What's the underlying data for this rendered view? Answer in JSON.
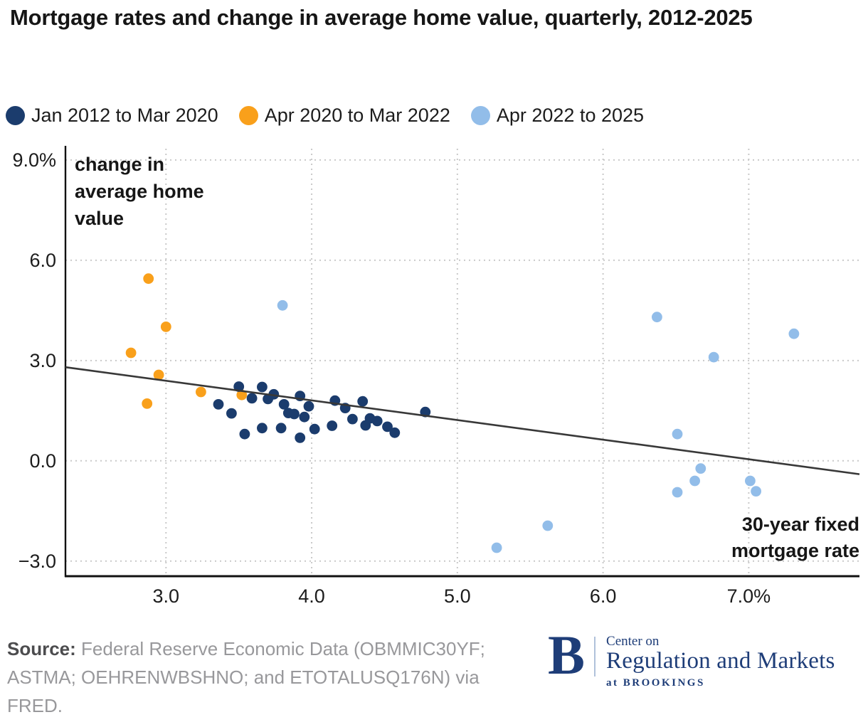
{
  "title": "Mortgage rates and change in average home value, quarterly, 2012-2025",
  "chart_data": {
    "type": "scatter",
    "title": "Mortgage rates and change in average home value, quarterly, 2012-2025",
    "xlabel": "30-year fixed mortgage rate",
    "ylabel": "change in average home value",
    "xlim": [
      2.31,
      7.76
    ],
    "ylim": [
      -3.43,
      9.38
    ],
    "grid": "dotted",
    "legend_position": "top",
    "x_ticks": [
      {
        "value": 3.0,
        "label": "3.0"
      },
      {
        "value": 4.0,
        "label": "4.0"
      },
      {
        "value": 5.0,
        "label": "5.0"
      },
      {
        "value": 6.0,
        "label": "6.0"
      },
      {
        "value": 7.0,
        "label": "7.0%"
      }
    ],
    "y_ticks": [
      {
        "value": 9.0,
        "label": "9.0%"
      },
      {
        "value": 6.0,
        "label": "6.0"
      },
      {
        "value": 3.0,
        "label": "3.0"
      },
      {
        "value": 0.0,
        "label": "0.0"
      },
      {
        "value": -3.0,
        "label": "−3.0"
      }
    ],
    "annotations": {
      "y_axis_lines": [
        "change in",
        "average home",
        "value"
      ],
      "x_axis_lines": [
        "30-year fixed",
        "mortgage rate"
      ]
    },
    "series": [
      {
        "name": "Jan 2012 to Mar 2020",
        "color": "#1b3c6d",
        "points": [
          [
            3.36,
            1.69
          ],
          [
            3.45,
            1.42
          ],
          [
            3.5,
            2.22
          ],
          [
            3.54,
            0.8
          ],
          [
            3.59,
            1.87
          ],
          [
            3.66,
            2.21
          ],
          [
            3.66,
            0.98
          ],
          [
            3.7,
            1.85
          ],
          [
            3.74,
            1.99
          ],
          [
            3.79,
            0.98
          ],
          [
            3.81,
            1.69
          ],
          [
            3.84,
            1.43
          ],
          [
            3.88,
            1.4
          ],
          [
            3.92,
            1.94
          ],
          [
            3.92,
            0.69
          ],
          [
            3.95,
            1.31
          ],
          [
            3.98,
            1.63
          ],
          [
            4.02,
            0.95
          ],
          [
            4.14,
            1.05
          ],
          [
            4.16,
            1.8
          ],
          [
            4.23,
            1.58
          ],
          [
            4.28,
            1.25
          ],
          [
            4.35,
            1.78
          ],
          [
            4.37,
            1.06
          ],
          [
            4.4,
            1.27
          ],
          [
            4.45,
            1.19
          ],
          [
            4.52,
            1.02
          ],
          [
            4.57,
            0.84
          ],
          [
            4.78,
            1.46
          ]
        ]
      },
      {
        "name": "Apr 2020 to Mar 2022",
        "color": "#f9a01b",
        "points": [
          [
            2.76,
            3.23
          ],
          [
            2.87,
            1.71
          ],
          [
            2.88,
            5.45
          ],
          [
            2.95,
            2.57
          ],
          [
            3.0,
            4.01
          ],
          [
            3.24,
            2.06
          ],
          [
            3.52,
            1.97
          ]
        ]
      },
      {
        "name": "Apr 2022 to 2025",
        "color": "#92bde9",
        "points": [
          [
            3.8,
            4.65
          ],
          [
            5.27,
            -2.6
          ],
          [
            5.62,
            -1.94
          ],
          [
            6.37,
            4.3
          ],
          [
            6.51,
            0.8
          ],
          [
            6.51,
            -0.94
          ],
          [
            6.63,
            -0.6
          ],
          [
            6.67,
            -0.23
          ],
          [
            6.76,
            3.1
          ],
          [
            7.01,
            -0.6
          ],
          [
            7.05,
            -0.91
          ],
          [
            7.31,
            3.8
          ]
        ]
      }
    ],
    "trendline": {
      "color": "#383838",
      "x": [
        2.31,
        7.76
      ],
      "y": [
        2.8,
        -0.4
      ]
    }
  },
  "footer": {
    "source_label": "Source:",
    "source_text": "Federal Reserve Economic Data (OBMMIC30YF; ASTMA; OEHRENWBSHNO; and ETOTALUSQ176N) via FRED."
  },
  "logo": {
    "mark": "B",
    "line1": "Center on",
    "line2": "Regulation and Markets",
    "line3": "at BROOKINGS"
  },
  "colors": {
    "navy": "#1b3c6d",
    "orange": "#f9a01b",
    "light_blue": "#92bde9",
    "brookings_navy": "#1e3d78",
    "grid": "#c9c9c9",
    "axis": "#111111",
    "trend": "#383838",
    "tick_text": "#1c1c1c"
  }
}
